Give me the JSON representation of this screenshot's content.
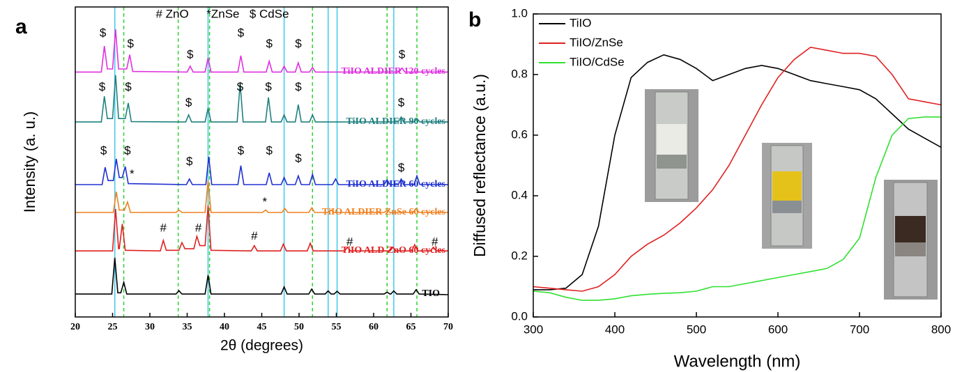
{
  "chart_data": [
    {
      "type": "line",
      "panel": "a",
      "xlabel": "2θ (degrees)",
      "ylabel": "Intensity (a. u.)",
      "xlim": [
        20,
        70
      ],
      "xticks": [
        20,
        25,
        30,
        35,
        40,
        45,
        50,
        55,
        60,
        65,
        70
      ],
      "ylim": [
        0,
        10
      ],
      "reference_lines": [
        {
          "color": "#40c8e8",
          "style": "solid",
          "x": [
            25.3,
            37.8,
            48.0,
            53.9,
            55.1,
            62.7
          ]
        },
        {
          "color": "#30d030",
          "style": "dashed",
          "x": [
            26.5,
            33.8,
            38.0,
            51.8,
            61.8,
            65.8
          ]
        }
      ],
      "annotations": [
        {
          "text": "# ZnO",
          "x": 33,
          "y": 9.75
        },
        {
          "text": "*ZnSe",
          "x": 39.8,
          "y": 9.75
        },
        {
          "text": "$ CdSe",
          "x": 46,
          "y": 9.75
        },
        {
          "text": "$",
          "x": 23.7,
          "y": 9.15
        },
        {
          "text": "$",
          "x": 27.4,
          "y": 8.8
        },
        {
          "text": "$",
          "x": 35.4,
          "y": 8.45
        },
        {
          "text": "$",
          "x": 42.2,
          "y": 9.15
        },
        {
          "text": "$",
          "x": 46,
          "y": 8.8
        },
        {
          "text": "$",
          "x": 49.9,
          "y": 8.8
        },
        {
          "text": "$",
          "x": 63.8,
          "y": 8.45
        },
        {
          "text": "$",
          "x": 23.6,
          "y": 7.4
        },
        {
          "text": "$",
          "x": 27.1,
          "y": 7.4
        },
        {
          "text": "$",
          "x": 35.2,
          "y": 6.9
        },
        {
          "text": "$",
          "x": 42.1,
          "y": 7.4
        },
        {
          "text": "$",
          "x": 45.9,
          "y": 7.4
        },
        {
          "text": "$",
          "x": 49.9,
          "y": 7.4
        },
        {
          "text": "$",
          "x": 63.7,
          "y": 6.9
        },
        {
          "text": "$",
          "x": 23.8,
          "y": 5.35
        },
        {
          "text": "$",
          "x": 27,
          "y": 5.35
        },
        {
          "text": "$",
          "x": 35.3,
          "y": 5.0
        },
        {
          "text": "$",
          "x": 42.2,
          "y": 5.35
        },
        {
          "text": "$",
          "x": 46,
          "y": 5.35
        },
        {
          "text": "$",
          "x": 49.9,
          "y": 5.1
        },
        {
          "text": "$",
          "x": 63.7,
          "y": 4.8
        },
        {
          "text": "*",
          "x": 27.6,
          "y": 4.6
        },
        {
          "text": "*",
          "x": 45.4,
          "y": 3.7
        },
        {
          "text": "#",
          "x": 31.8,
          "y": 2.85
        },
        {
          "text": "#",
          "x": 36.5,
          "y": 2.85
        },
        {
          "text": "#",
          "x": 44,
          "y": 2.6
        },
        {
          "text": "#",
          "x": 56.8,
          "y": 2.4
        },
        {
          "text": "#",
          "x": 68.2,
          "y": 2.4
        }
      ],
      "series": [
        {
          "name": "TIO",
          "color": "#000000",
          "x": [
            20,
            24.9,
            25.3,
            25.7,
            26.1,
            26.5,
            26.9,
            33.5,
            33.9,
            34.3,
            37.4,
            37.8,
            38.2,
            47.6,
            48,
            48.4,
            51.3,
            51.7,
            52.1,
            53.5,
            53.9,
            54.3,
            54.7,
            55.1,
            55.5,
            61.4,
            61.8,
            62.2,
            62.3,
            62.7,
            63.1,
            65.3,
            65.7,
            66.1,
            70
          ],
          "values": [
            0.74,
            0.74,
            1.91,
            0.78,
            0.78,
            1.12,
            0.74,
            0.74,
            0.85,
            0.74,
            0.74,
            1.35,
            0.74,
            0.74,
            0.97,
            0.74,
            0.74,
            0.9,
            0.74,
            0.74,
            0.84,
            0.74,
            0.74,
            0.83,
            0.74,
            0.74,
            0.8,
            0.74,
            0.74,
            0.84,
            0.74,
            0.74,
            0.88,
            0.74,
            0.72
          ]
        },
        {
          "name": "TiIO ALD ZnO 60 cycles",
          "color": "#e02020",
          "x": [
            20,
            25,
            25.4,
            25.8,
            25.9,
            26.3,
            26.7,
            31.4,
            31.8,
            32.2,
            33.9,
            34.3,
            34.7,
            35.9,
            36.3,
            36.7,
            37.4,
            37.8,
            38.2,
            43.6,
            44,
            44.4,
            47.5,
            47.9,
            48.3,
            51.1,
            51.5,
            51.9,
            56.1,
            56.5,
            56.9,
            62.2,
            62.6,
            63,
            65.1,
            65.5,
            65.9,
            67.6,
            68,
            68.4,
            70
          ],
          "values": [
            2.13,
            2.13,
            3.48,
            2.2,
            2.2,
            3.0,
            2.15,
            2.13,
            2.47,
            2.15,
            2.15,
            2.4,
            2.2,
            2.2,
            2.6,
            2.3,
            2.3,
            3.6,
            2.15,
            2.13,
            2.3,
            2.13,
            2.13,
            2.35,
            2.13,
            2.13,
            2.38,
            2.13,
            2.13,
            2.25,
            2.13,
            2.13,
            2.25,
            2.13,
            2.13,
            2.33,
            2.13,
            2.13,
            2.25,
            2.13,
            2.13
          ]
        },
        {
          "name": "TiIO ALDIER ZnSe 60 cycles",
          "color": "#f08020",
          "x": [
            20,
            25.1,
            25.5,
            25.9,
            26.6,
            27,
            27.4,
            33.5,
            33.9,
            34.3,
            37.4,
            37.8,
            38.2,
            45.1,
            45.5,
            45.9,
            47.7,
            48.1,
            48.5,
            51.3,
            51.7,
            52.1,
            53.9,
            54.3,
            54.7,
            61.4,
            61.8,
            62.2,
            65.3,
            65.7,
            66.1,
            70
          ],
          "values": [
            3.37,
            3.37,
            4.04,
            3.45,
            3.45,
            3.71,
            3.37,
            3.37,
            3.45,
            3.37,
            3.37,
            4.4,
            3.37,
            3.37,
            3.45,
            3.37,
            3.37,
            3.5,
            3.37,
            3.37,
            3.52,
            3.37,
            3.37,
            3.45,
            3.37,
            3.37,
            3.44,
            3.37,
            3.37,
            3.5,
            3.37,
            3.37
          ]
        },
        {
          "name": "TiIO ALDIER 60 cycles",
          "color": "#2030d0",
          "x": [
            20,
            23.6,
            24,
            24.4,
            25.1,
            25.5,
            25.9,
            26.3,
            26.7,
            27.1,
            34.9,
            35.3,
            35.7,
            37.5,
            37.9,
            38.3,
            41.8,
            42.2,
            42.6,
            45.6,
            46,
            46.4,
            47.6,
            48,
            48.4,
            49.5,
            49.9,
            50.3,
            51.4,
            51.8,
            52.2,
            54.5,
            54.9,
            55.3,
            61.4,
            61.8,
            62.2,
            63.3,
            63.7,
            64.1,
            65.4,
            65.8,
            66.2,
            70
          ],
          "values": [
            4.27,
            4.27,
            4.83,
            4.4,
            4.4,
            5.1,
            4.5,
            4.5,
            4.85,
            4.3,
            4.27,
            4.45,
            4.27,
            4.27,
            5.17,
            4.27,
            4.27,
            4.88,
            4.27,
            4.27,
            4.65,
            4.27,
            4.27,
            4.5,
            4.27,
            4.27,
            4.55,
            4.27,
            4.27,
            4.6,
            4.27,
            4.27,
            4.45,
            4.27,
            4.27,
            4.42,
            4.27,
            4.27,
            4.45,
            4.27,
            4.27,
            4.55,
            4.27,
            4.27
          ]
        },
        {
          "name": "TiIO ALDIER 90 cycles",
          "color": "#208080",
          "x": [
            20,
            23.5,
            23.9,
            24.3,
            25,
            25.4,
            25.8,
            26.7,
            27.1,
            27.5,
            34.8,
            35.2,
            35.6,
            37.4,
            37.8,
            38.2,
            41.7,
            42.1,
            42.5,
            45.5,
            45.9,
            46.3,
            47.6,
            48,
            48.4,
            49.5,
            49.9,
            50.3,
            51.4,
            51.8,
            52.2,
            63.3,
            63.7,
            64.1,
            65.4,
            65.8,
            66.2,
            70
          ],
          "values": [
            6.29,
            6.29,
            7.12,
            6.4,
            6.4,
            7.8,
            6.4,
            6.4,
            6.9,
            6.3,
            6.29,
            6.52,
            6.29,
            6.29,
            6.74,
            6.29,
            6.29,
            7.53,
            6.29,
            6.29,
            7.08,
            6.29,
            6.29,
            6.52,
            6.29,
            6.29,
            6.85,
            6.29,
            6.29,
            6.52,
            6.29,
            6.29,
            6.45,
            6.29,
            6.29,
            6.4,
            6.29,
            6.29
          ]
        },
        {
          "name": "TiIO ALDIER 120 cycles",
          "color": "#e030e0",
          "x": [
            20,
            23.5,
            23.9,
            24.3,
            25,
            25.4,
            25.8,
            26.9,
            27.3,
            27.7,
            35,
            35.4,
            35.8,
            37.4,
            37.8,
            38.2,
            41.8,
            42.2,
            42.6,
            45.6,
            46,
            46.4,
            47.6,
            48,
            48.4,
            49.5,
            49.9,
            50.3,
            51.4,
            51.8,
            52.2,
            63.4,
            63.8,
            64.2,
            70
          ],
          "values": [
            7.9,
            7.9,
            8.74,
            8.0,
            8.0,
            9.28,
            8.0,
            8.0,
            8.46,
            7.92,
            7.9,
            8.09,
            7.9,
            7.9,
            8.36,
            7.9,
            7.9,
            8.43,
            7.9,
            7.9,
            8.25,
            7.9,
            7.9,
            8.09,
            7.9,
            7.9,
            8.2,
            7.9,
            7.9,
            8.05,
            7.9,
            7.9,
            8.03,
            7.9,
            7.9
          ]
        }
      ]
    },
    {
      "type": "line",
      "panel": "b",
      "xlabel": "Wavelength (nm)",
      "ylabel": "Diffused reflectance (a.u.)",
      "xlim": [
        300,
        800
      ],
      "xticks": [
        300,
        400,
        500,
        600,
        700,
        800
      ],
      "ylim": [
        0,
        1.0
      ],
      "yticks": [
        {
          "value": 0,
          "label": "0.0"
        },
        0.2,
        0.4,
        0.6,
        0.8,
        {
          "value": 1.0,
          "label": "1.0"
        }
      ],
      "legend": "upper left",
      "x": [
        300,
        320,
        340,
        360,
        380,
        400,
        420,
        440,
        460,
        480,
        500,
        520,
        540,
        560,
        580,
        600,
        620,
        640,
        660,
        680,
        700,
        720,
        740,
        760,
        780,
        800
      ],
      "series": [
        {
          "name": "TiIO",
          "color": "#000000",
          "values": [
            0.09,
            0.09,
            0.095,
            0.14,
            0.3,
            0.6,
            0.79,
            0.84,
            0.865,
            0.85,
            0.82,
            0.78,
            0.8,
            0.82,
            0.83,
            0.82,
            0.8,
            0.78,
            0.77,
            0.76,
            0.75,
            0.72,
            0.67,
            0.62,
            0.59,
            0.56
          ]
        },
        {
          "name": "TiIO/ZnSe",
          "color": "#e02020",
          "values": [
            0.1,
            0.095,
            0.09,
            0.085,
            0.1,
            0.14,
            0.2,
            0.24,
            0.27,
            0.31,
            0.36,
            0.42,
            0.5,
            0.6,
            0.7,
            0.79,
            0.85,
            0.89,
            0.88,
            0.87,
            0.87,
            0.86,
            0.8,
            0.72,
            0.71,
            0.7
          ]
        },
        {
          "name": "TiIO/CdSe",
          "color": "#30e030",
          "values": [
            0.085,
            0.08,
            0.065,
            0.055,
            0.055,
            0.06,
            0.07,
            0.075,
            0.078,
            0.08,
            0.085,
            0.1,
            0.1,
            0.11,
            0.12,
            0.13,
            0.14,
            0.15,
            0.16,
            0.19,
            0.26,
            0.46,
            0.6,
            0.655,
            0.66,
            0.66
          ]
        }
      ]
    }
  ]
}
